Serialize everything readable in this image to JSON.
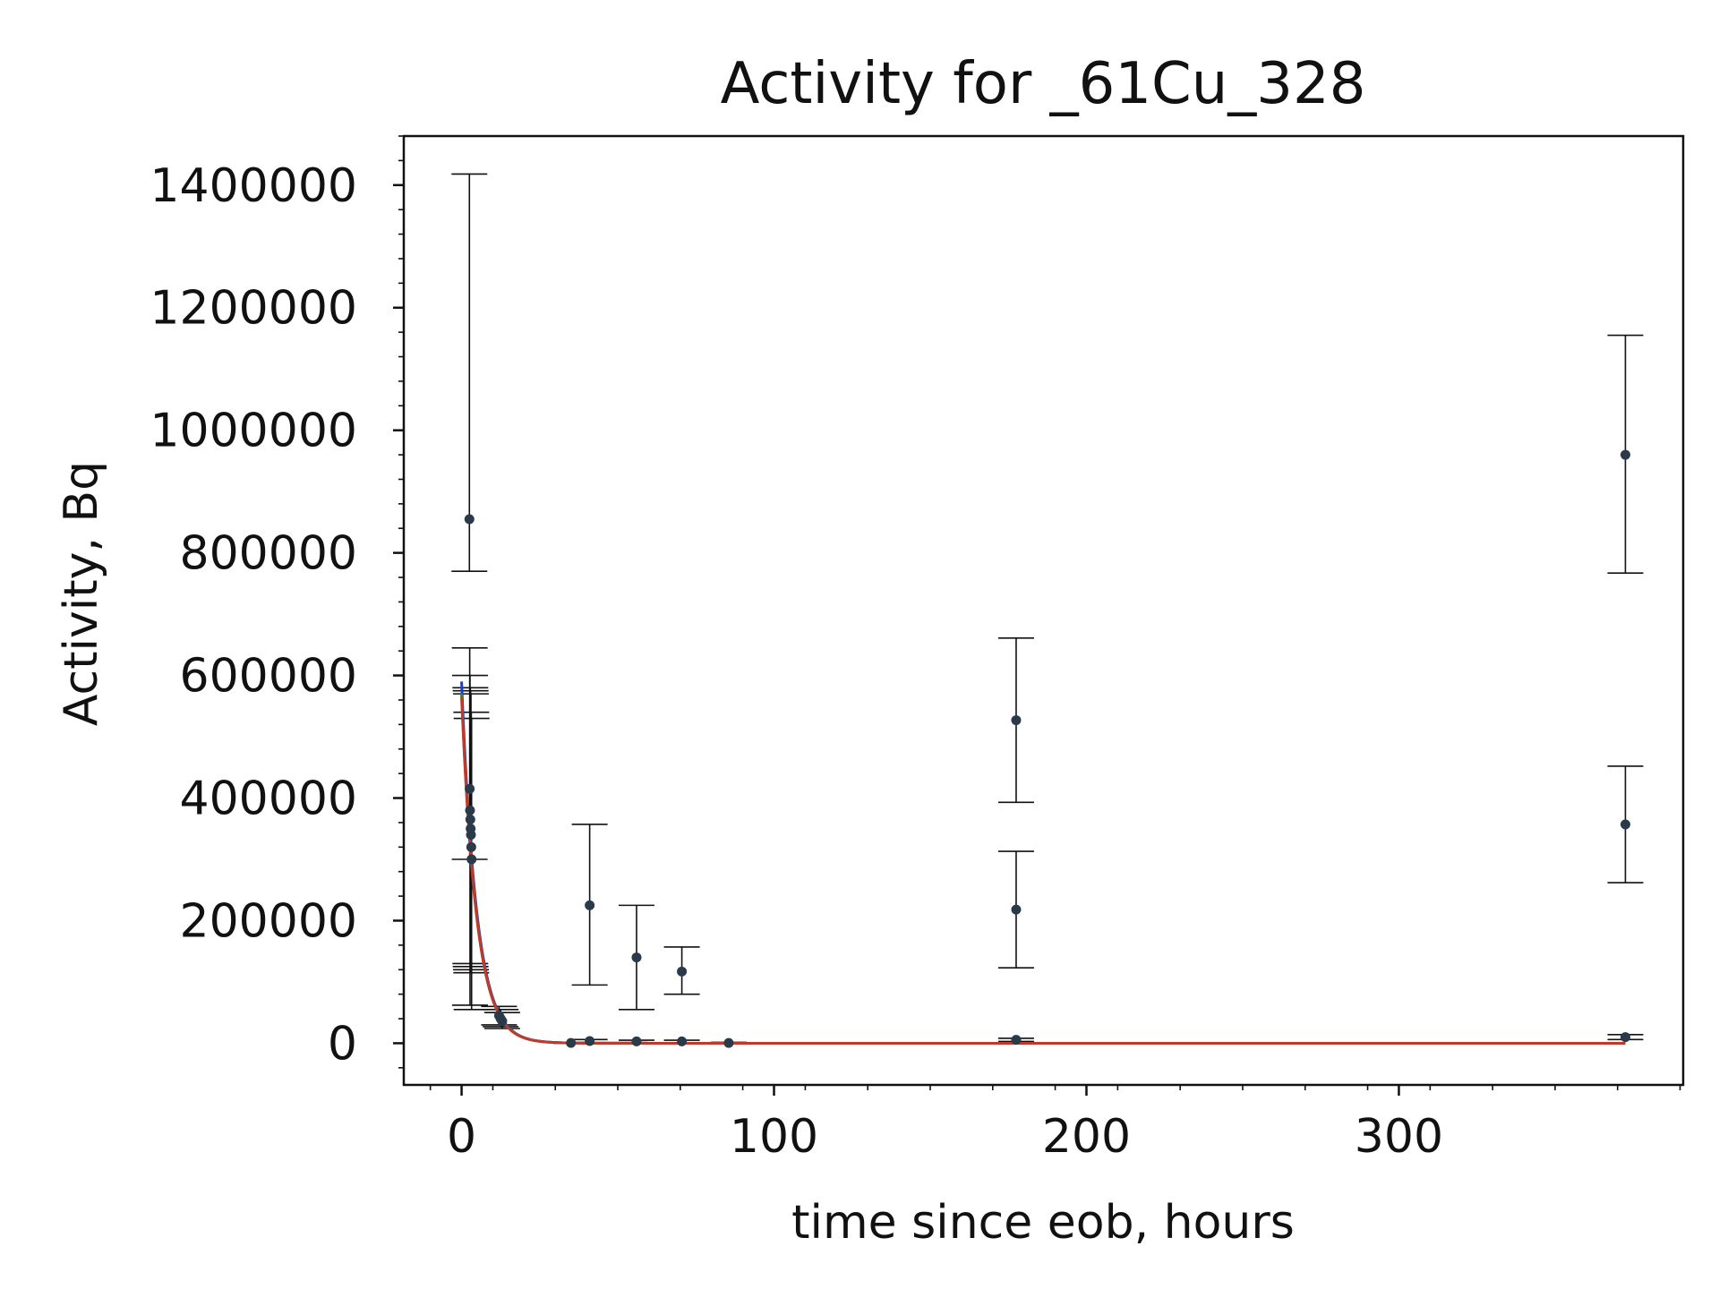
{
  "chart_data": {
    "type": "scatter",
    "title": "Activity for _61Cu_328",
    "xlabel": "time since eob, hours",
    "ylabel": "Activity, Bq",
    "xlim": [
      -18.5,
      391
    ],
    "ylim": [
      -68000,
      1480000
    ],
    "xticks": [
      0,
      100,
      200,
      300
    ],
    "xtick_labels": [
      "0",
      "100",
      "200",
      "300"
    ],
    "yticks": [
      0,
      200000,
      400000,
      600000,
      800000,
      1000000,
      1200000,
      1400000
    ],
    "ytick_labels": [
      "0",
      "200000",
      "400000",
      "600000",
      "800000",
      "1000000",
      "1200000",
      "1400000"
    ],
    "grid": false,
    "points": [
      {
        "x": 2.5,
        "y": 855000,
        "yerr": [
          770000,
          1418000
        ]
      },
      {
        "x": 2.6,
        "y": 415000,
        "yerr": [
          300000,
          645000
        ]
      },
      {
        "x": 2.7,
        "y": 380000,
        "yerr": [
          62000,
          600000
        ]
      },
      {
        "x": 2.8,
        "y": 365000,
        "yerr": [
          130000,
          580000
        ]
      },
      {
        "x": 2.9,
        "y": 350000,
        "yerr": [
          125000,
          575000
        ]
      },
      {
        "x": 3.0,
        "y": 340000,
        "yerr": [
          120000,
          570000
        ]
      },
      {
        "x": 3.1,
        "y": 320000,
        "yerr": [
          115000,
          540000
        ]
      },
      {
        "x": 3.2,
        "y": 300000,
        "yerr": [
          55000,
          530000
        ]
      },
      {
        "x": 12.0,
        "y": 45000,
        "yerr": [
          30000,
          60000
        ]
      },
      {
        "x": 12.5,
        "y": 40000,
        "yerr": [
          27000,
          55000
        ]
      },
      {
        "x": 13.0,
        "y": 36000,
        "yerr": [
          24000,
          50000
        ]
      },
      {
        "x": 35.0,
        "y": 500,
        "yerr": [
          0,
          1500
        ]
      },
      {
        "x": 41.0,
        "y": 3500,
        "yerr": [
          1000,
          6000
        ]
      },
      {
        "x": 41.0,
        "y": 225000,
        "yerr": [
          95000,
          357000
        ]
      },
      {
        "x": 56.0,
        "y": 3000,
        "yerr": [
          1000,
          5000
        ]
      },
      {
        "x": 56.0,
        "y": 140000,
        "yerr": [
          55000,
          225000
        ]
      },
      {
        "x": 70.5,
        "y": 3000,
        "yerr": [
          1000,
          5000
        ]
      },
      {
        "x": 70.5,
        "y": 117000,
        "yerr": [
          80000,
          157000
        ]
      },
      {
        "x": 85.5,
        "y": 500,
        "yerr": [
          0,
          1500
        ]
      },
      {
        "x": 177.5,
        "y": 5500,
        "yerr": [
          3000,
          8000
        ]
      },
      {
        "x": 177.5,
        "y": 218000,
        "yerr": [
          123000,
          313000
        ]
      },
      {
        "x": 177.5,
        "y": 527000,
        "yerr": [
          393000,
          661000
        ]
      },
      {
        "x": 372.5,
        "y": 10000,
        "yerr": [
          6000,
          14000
        ]
      },
      {
        "x": 372.5,
        "y": 357000,
        "yerr": [
          262000,
          452000
        ]
      },
      {
        "x": 372.5,
        "y": 960000,
        "yerr": [
          767000,
          1155000
        ]
      }
    ],
    "fit_curves": [
      {
        "color": "#1f3fbf",
        "A0": 590000,
        "half_life_hours": 3.33
      },
      {
        "color": "#2a8a3a",
        "A0": 570000,
        "half_life_hours": 3.33
      },
      {
        "color": "#c0392b",
        "A0": 565000,
        "half_life_hours": 3.33
      }
    ],
    "fit_x_range": [
      0,
      372.5
    ],
    "point_color": "#2b3a4a",
    "errorbar_color": "#111111"
  }
}
